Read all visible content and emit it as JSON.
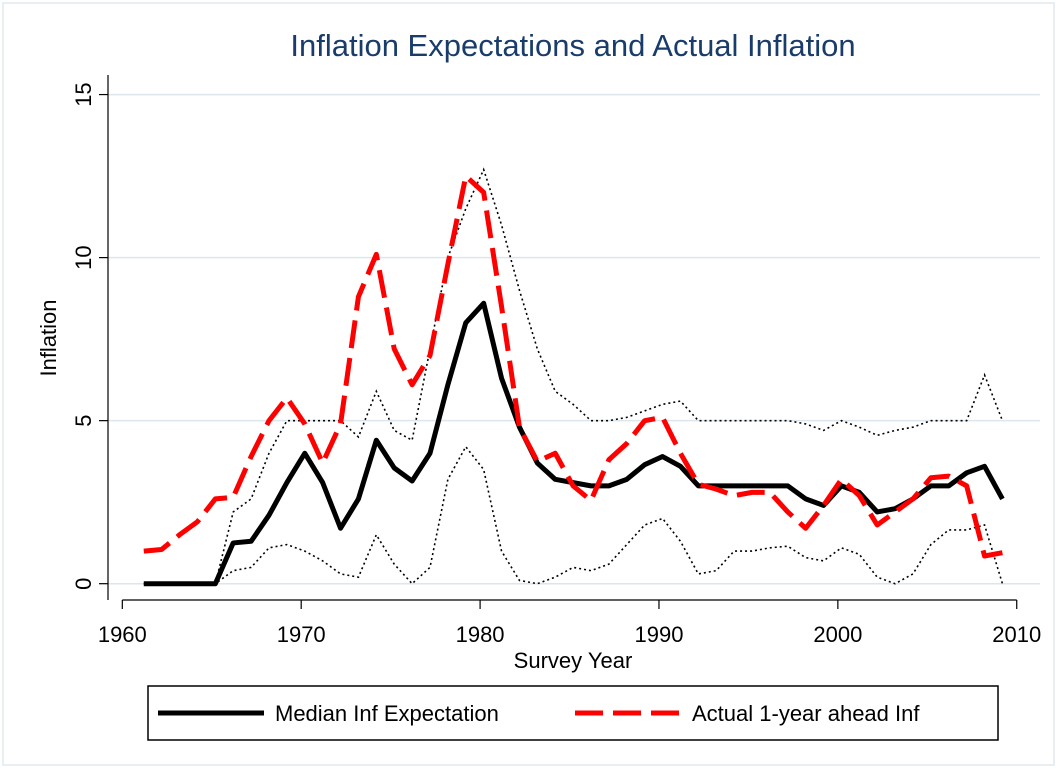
{
  "chart_data": {
    "type": "line",
    "title": "Inflation Expectations and Actual Inflation",
    "x_label": "Survey Year",
    "y_label": "Inflation",
    "x": [
      1961.2,
      1962.2,
      1963.2,
      1964.2,
      1965.2,
      1966.2,
      1967.2,
      1968.2,
      1969.2,
      1970.2,
      1971.2,
      1972.2,
      1973.2,
      1974.2,
      1975.2,
      1976.2,
      1977.2,
      1978.2,
      1979.2,
      1980.2,
      1981.2,
      1982.2,
      1983.2,
      1984.2,
      1985.2,
      1986.2,
      1987.2,
      1988.2,
      1989.2,
      1990.2,
      1991.2,
      1992.2,
      1993.2,
      1994.2,
      1995.2,
      1996.2,
      1997.2,
      1998.2,
      1999.2,
      2000.2,
      2001.2,
      2002.2,
      2003.2,
      2004.2,
      2005.2,
      2006.2,
      2007.2,
      2008.2,
      2009.2
    ],
    "series": [
      {
        "name": "Median Inf Expectation",
        "color": "#000000",
        "dash": "solid",
        "values": [
          0,
          0,
          0,
          0,
          0,
          1.25,
          1.3,
          2.1,
          3.1,
          4.0,
          3.1,
          1.7,
          2.6,
          4.4,
          3.55,
          3.15,
          4.0,
          6.1,
          8.0,
          8.6,
          6.3,
          4.8,
          3.7,
          3.2,
          3.1,
          3.0,
          3.0,
          3.2,
          3.65,
          3.9,
          3.6,
          3.0,
          3.0,
          3.0,
          3.0,
          3.0,
          3.0,
          2.6,
          2.4,
          3.0,
          2.8,
          2.2,
          2.3,
          2.6,
          3.0,
          3.0,
          3.4,
          3.6,
          2.6
        ]
      },
      {
        "name": "Actual 1-year ahead Inf",
        "color": "#ff0000",
        "dash": "dashed",
        "values": [
          1.0,
          1.05,
          1.5,
          1.9,
          2.6,
          2.65,
          3.9,
          5.0,
          5.7,
          4.9,
          3.7,
          4.9,
          8.8,
          10.1,
          7.2,
          6.1,
          7.0,
          9.8,
          12.5,
          12.0,
          8.5,
          4.8,
          3.75,
          4.0,
          3.0,
          2.55,
          3.8,
          4.3,
          5.0,
          5.1,
          4.0,
          3.05,
          2.9,
          2.7,
          2.8,
          2.8,
          2.2,
          1.7,
          2.4,
          3.2,
          2.7,
          1.8,
          2.2,
          2.6,
          3.25,
          3.3,
          3.0,
          0.85,
          0.95
        ]
      }
    ],
    "bands": [
      {
        "color": "#000000",
        "dash": "dotted",
        "values": [
          0,
          0,
          0,
          0,
          0,
          2.2,
          2.6,
          4.0,
          5.0,
          5.0,
          5.0,
          5.0,
          4.5,
          5.9,
          4.7,
          4.4,
          7.2,
          10.0,
          11.5,
          12.7,
          11.0,
          9.0,
          7.2,
          5.9,
          5.5,
          5.0,
          5.0,
          5.1,
          5.3,
          5.5,
          5.6,
          5.0,
          5.0,
          5.0,
          5.0,
          5.0,
          5.0,
          4.9,
          4.7,
          5.0,
          4.8,
          4.55,
          4.7,
          4.8,
          5.0,
          5.0,
          5.0,
          6.4,
          5.0
        ]
      },
      {
        "color": "#000000",
        "dash": "dotted",
        "values": [
          0,
          0,
          0,
          0,
          0,
          0.4,
          0.5,
          1.1,
          1.2,
          1.0,
          0.7,
          0.3,
          0.2,
          1.5,
          0.6,
          0,
          0.5,
          3.2,
          4.2,
          3.5,
          1.0,
          0.1,
          0,
          0.2,
          0.5,
          0.4,
          0.6,
          1.2,
          1.8,
          2.0,
          1.3,
          0.3,
          0.4,
          1.0,
          1.0,
          1.1,
          1.15,
          0.8,
          0.7,
          1.1,
          0.9,
          0.2,
          0,
          0.3,
          1.2,
          1.65,
          1.65,
          1.8,
          0
        ]
      }
    ],
    "xlim": [
      1959.2,
      2011.3
    ],
    "ylim": [
      -0.5,
      15.6
    ],
    "xticks": [
      1960,
      1970,
      1980,
      1990,
      2000,
      2010
    ],
    "yticks": [
      0,
      5,
      10,
      15
    ],
    "grid": true,
    "legend": "bottom"
  }
}
